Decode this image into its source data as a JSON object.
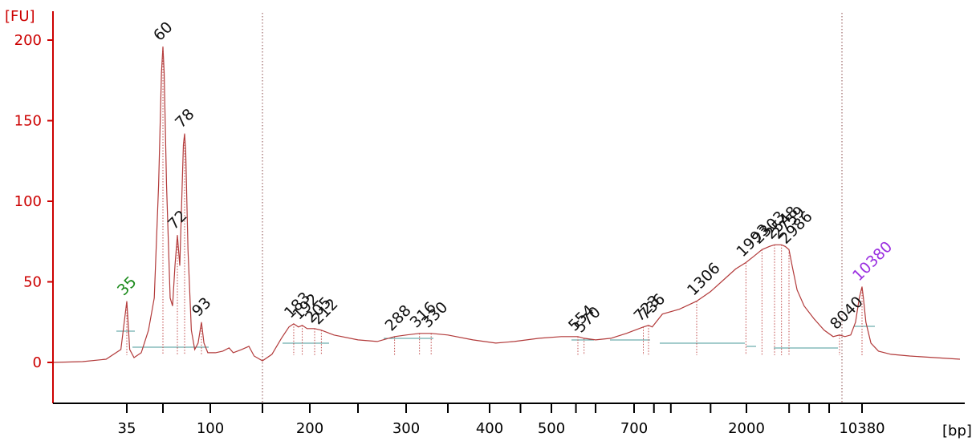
{
  "chart_data": {
    "type": "line",
    "title": "",
    "y_unit_label": "[FU]",
    "x_unit_label": "[bp]",
    "ylim": [
      -25,
      218
    ],
    "y_ticks": [
      0,
      50,
      100,
      150,
      200
    ],
    "x_ticks": [
      {
        "label": "35",
        "x": 35
      },
      {
        "label": "100",
        "x": 100
      },
      {
        "label": "200",
        "x": 200
      },
      {
        "label": "300",
        "x": 300
      },
      {
        "label": "400",
        "x": 400
      },
      {
        "label": "500",
        "x": 500
      },
      {
        "label": "700",
        "x": 700
      },
      {
        "label": "2000",
        "x": 2000
      },
      {
        "label": "10380",
        "x": 10380
      }
    ],
    "x_minor_ticks": [
      60,
      150,
      250,
      350,
      450,
      550,
      600,
      800,
      1000,
      1500,
      3000,
      5000,
      7000
    ],
    "markers": [
      {
        "label": "35",
        "x": 35,
        "kind": "lower"
      },
      {
        "label": "10380",
        "x": 10380,
        "kind": "upper"
      }
    ],
    "peaks": [
      {
        "label": "35",
        "x": 35,
        "y": 38,
        "color": "green"
      },
      {
        "label": "60",
        "x": 60,
        "y": 196,
        "color": "black"
      },
      {
        "label": "72",
        "x": 72,
        "y": 79,
        "color": "black"
      },
      {
        "label": "78",
        "x": 78,
        "y": 142,
        "color": "black"
      },
      {
        "label": "93",
        "x": 93,
        "y": 25,
        "color": "black"
      },
      {
        "label": "183",
        "x": 183,
        "y": 24,
        "color": "black"
      },
      {
        "label": "192",
        "x": 192,
        "y": 23,
        "color": "black"
      },
      {
        "label": "205",
        "x": 205,
        "y": 21,
        "color": "black"
      },
      {
        "label": "212",
        "x": 212,
        "y": 20,
        "color": "black"
      },
      {
        "label": "288",
        "x": 288,
        "y": 16,
        "color": "black"
      },
      {
        "label": "316",
        "x": 316,
        "y": 18,
        "color": "black"
      },
      {
        "label": "330",
        "x": 330,
        "y": 18,
        "color": "black"
      },
      {
        "label": "554",
        "x": 554,
        "y": 16,
        "color": "black"
      },
      {
        "label": "570",
        "x": 570,
        "y": 15,
        "color": "black"
      },
      {
        "label": "723",
        "x": 723,
        "y": 22,
        "color": "black"
      },
      {
        "label": "736",
        "x": 736,
        "y": 23,
        "color": "black"
      },
      {
        "label": "1306",
        "x": 1306,
        "y": 38,
        "color": "black"
      },
      {
        "label": "1993",
        "x": 1993,
        "y": 62,
        "color": "black"
      },
      {
        "label": "2303",
        "x": 2303,
        "y": 70,
        "color": "black"
      },
      {
        "label": "2548",
        "x": 2548,
        "y": 73,
        "color": "black"
      },
      {
        "label": "2759",
        "x": 2759,
        "y": 73,
        "color": "black"
      },
      {
        "label": "2986",
        "x": 2986,
        "y": 70,
        "color": "black"
      },
      {
        "label": "8040",
        "x": 8040,
        "y": 17,
        "color": "black"
      },
      {
        "label": "10380",
        "x": 10380,
        "y": 47,
        "color": "purple"
      }
    ],
    "trace": [
      [
        10,
        0
      ],
      [
        20,
        0.5
      ],
      [
        28,
        2
      ],
      [
        33,
        8
      ],
      [
        35,
        38
      ],
      [
        37,
        8
      ],
      [
        40,
        3
      ],
      [
        45,
        6
      ],
      [
        50,
        20
      ],
      [
        54,
        40
      ],
      [
        57,
        110
      ],
      [
        59,
        180
      ],
      [
        60,
        196
      ],
      [
        61,
        180
      ],
      [
        63,
        110
      ],
      [
        66,
        40
      ],
      [
        68,
        35
      ],
      [
        70,
        60
      ],
      [
        72,
        79
      ],
      [
        74,
        60
      ],
      [
        76,
        110
      ],
      [
        77,
        135
      ],
      [
        78,
        142
      ],
      [
        79,
        130
      ],
      [
        81,
        70
      ],
      [
        84,
        20
      ],
      [
        87,
        8
      ],
      [
        90,
        12
      ],
      [
        93,
        25
      ],
      [
        95,
        12
      ],
      [
        98,
        6
      ],
      [
        105,
        6
      ],
      [
        112,
        7
      ],
      [
        118,
        9
      ],
      [
        122,
        6
      ],
      [
        130,
        8
      ],
      [
        137,
        10
      ],
      [
        142,
        4
      ],
      [
        150,
        1
      ],
      [
        160,
        5
      ],
      [
        170,
        15
      ],
      [
        178,
        22
      ],
      [
        183,
        24
      ],
      [
        188,
        22
      ],
      [
        192,
        23
      ],
      [
        197,
        21
      ],
      [
        205,
        21
      ],
      [
        212,
        20
      ],
      [
        225,
        17
      ],
      [
        250,
        14
      ],
      [
        270,
        13
      ],
      [
        288,
        16
      ],
      [
        300,
        17
      ],
      [
        316,
        18
      ],
      [
        330,
        18
      ],
      [
        350,
        17
      ],
      [
        380,
        14
      ],
      [
        410,
        12
      ],
      [
        440,
        13
      ],
      [
        480,
        15
      ],
      [
        520,
        16
      ],
      [
        554,
        16
      ],
      [
        570,
        15
      ],
      [
        600,
        14
      ],
      [
        640,
        15
      ],
      [
        680,
        18
      ],
      [
        723,
        22
      ],
      [
        736,
        23
      ],
      [
        780,
        22
      ],
      [
        900,
        30
      ],
      [
        1100,
        33
      ],
      [
        1306,
        38
      ],
      [
        1500,
        44
      ],
      [
        1700,
        52
      ],
      [
        1850,
        58
      ],
      [
        1993,
        62
      ],
      [
        2150,
        66
      ],
      [
        2303,
        70
      ],
      [
        2450,
        72
      ],
      [
        2548,
        73
      ],
      [
        2659,
        73
      ],
      [
        2759,
        73
      ],
      [
        2870,
        72
      ],
      [
        2986,
        70
      ],
      [
        3300,
        60
      ],
      [
        3800,
        45
      ],
      [
        4500,
        35
      ],
      [
        5500,
        27
      ],
      [
        6500,
        20
      ],
      [
        7400,
        16
      ],
      [
        8040,
        17
      ],
      [
        8600,
        16
      ],
      [
        9200,
        17
      ],
      [
        9700,
        25
      ],
      [
        10100,
        40
      ],
      [
        10380,
        47
      ],
      [
        10600,
        40
      ],
      [
        11000,
        25
      ],
      [
        11800,
        12
      ],
      [
        13000,
        7
      ],
      [
        15000,
        5
      ],
      [
        18000,
        4
      ],
      [
        22000,
        3
      ],
      [
        26000,
        2
      ]
    ]
  }
}
